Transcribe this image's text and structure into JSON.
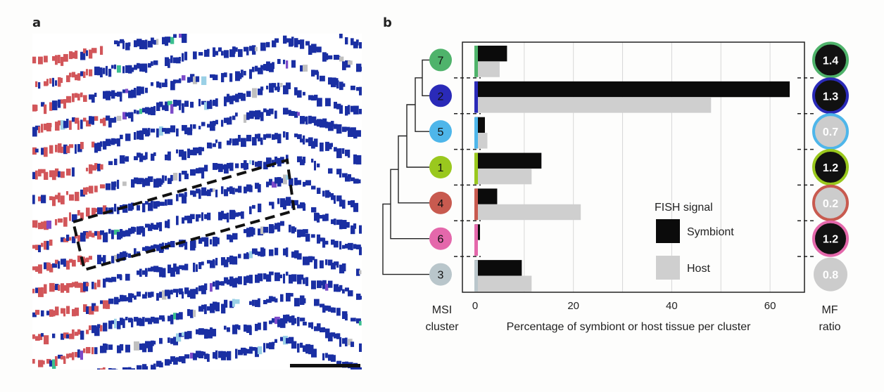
{
  "panel_labels": {
    "a": "a",
    "b": "b"
  },
  "colors": {
    "symbiont": "#0b0b0b",
    "host": "#cfcfcf",
    "microscopy_blue": "#1a2fa3",
    "microscopy_red": "#d2565a",
    "axis": "#222222",
    "grid": "#d7d7d7"
  },
  "chart_data": {
    "type": "bar",
    "orientation": "horizontal",
    "xlabel": "Percentage of symbiont or host tissue per cluster",
    "xlim": [
      0,
      67
    ],
    "x_ticks": [
      0,
      20,
      40,
      60
    ],
    "grid": true,
    "legend": {
      "title": "FISH signal",
      "placement": "lower-right",
      "entries": [
        "Symbiont",
        "Host"
      ]
    },
    "left_axis_label": [
      "MSI",
      "cluster"
    ],
    "right_axis_label": [
      "MF",
      "ratio"
    ],
    "categories": [
      "7",
      "2",
      "5",
      "1",
      "4",
      "6",
      "3"
    ],
    "cluster_colors": [
      "#4fb36b",
      "#2a2ab8",
      "#4eb6ea",
      "#9ac81e",
      "#c85a4f",
      "#e468ab",
      "#b9c6cb"
    ],
    "series": [
      {
        "name": "Symbiont",
        "values": [
          6.5,
          64,
          2,
          13.5,
          4.5,
          1,
          9.5
        ]
      },
      {
        "name": "Host",
        "values": [
          5,
          48,
          2.5,
          11.5,
          21.5,
          0.5,
          11.5
        ]
      }
    ],
    "mf_ratio": [
      "1.4",
      "1.3",
      "0.7",
      "1.2",
      "0.2",
      "1.2",
      "0.8"
    ],
    "mf_fill": [
      "#111111",
      "#111111",
      "#cccccc",
      "#111111",
      "#cccccc",
      "#111111",
      "#cccccc"
    ]
  }
}
